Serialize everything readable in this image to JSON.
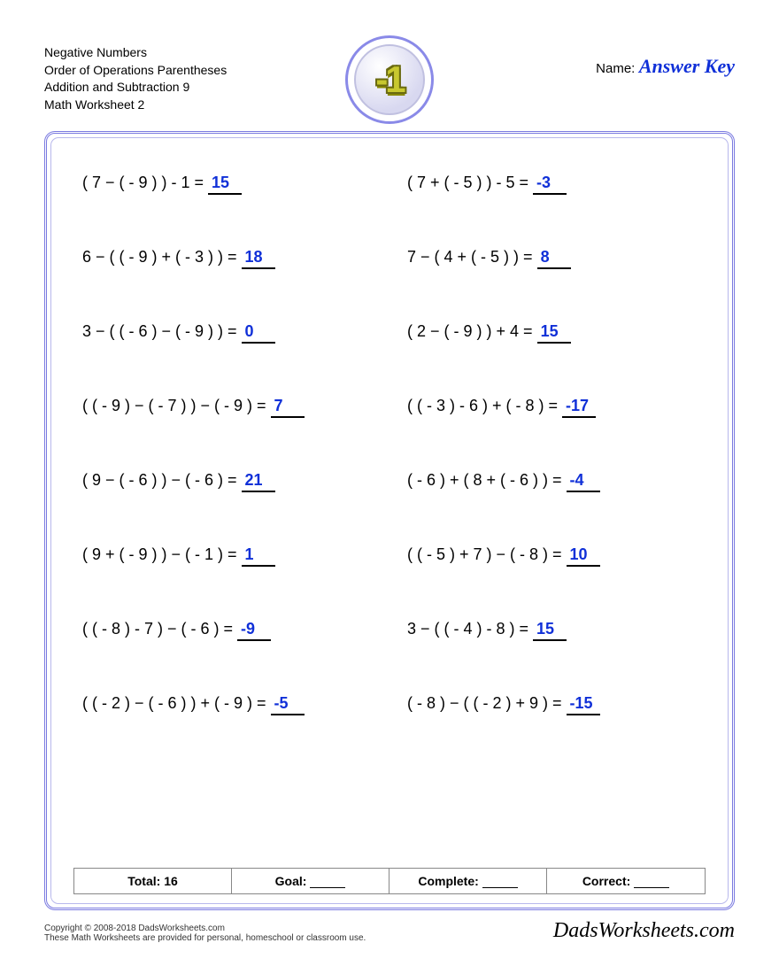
{
  "colors": {
    "answer_color": "#1030d8",
    "border_color": "#7a7ae0",
    "badge_num_fill": "#c8c830",
    "badge_num_stroke": "#6a6a10",
    "page_bg": "#ffffff"
  },
  "header": {
    "lines": [
      "Negative Numbers",
      "Order of Operations Parentheses",
      "Addition and Subtraction 9",
      "Math Worksheet 2"
    ],
    "badge_text": "-1",
    "name_label": "Name:",
    "answer_key": "Answer Key"
  },
  "problems": [
    {
      "expr": "( 7 − ( - 9 ) ) - 1 =",
      "ans": "15"
    },
    {
      "expr": "( 7 + ( - 5 ) ) - 5 =",
      "ans": "-3"
    },
    {
      "expr": "6 − ( ( - 9 ) + ( - 3 ) ) =",
      "ans": "18"
    },
    {
      "expr": "7 − ( 4 + ( - 5 ) ) =",
      "ans": "8"
    },
    {
      "expr": "3 − ( ( - 6 ) − ( - 9 ) ) =",
      "ans": "0"
    },
    {
      "expr": "( 2 − ( - 9 ) ) + 4 =",
      "ans": "15"
    },
    {
      "expr": "( ( - 9 ) − ( - 7 ) ) − ( - 9 ) =",
      "ans": "7"
    },
    {
      "expr": "( ( - 3 ) - 6 ) + ( - 8 ) =",
      "ans": "-17"
    },
    {
      "expr": "( 9 − ( - 6 ) ) − ( - 6 ) =",
      "ans": "21"
    },
    {
      "expr": "( - 6 ) + ( 8 + ( - 6 ) ) =",
      "ans": "-4"
    },
    {
      "expr": "( 9 + ( - 9 ) ) − ( - 1 ) =",
      "ans": "1"
    },
    {
      "expr": "( ( - 5 ) + 7 ) − ( - 8 ) =",
      "ans": "10"
    },
    {
      "expr": "( ( - 8 ) - 7 ) − ( - 6 ) =",
      "ans": "-9"
    },
    {
      "expr": "3 − ( ( - 4 ) - 8 ) =",
      "ans": "15"
    },
    {
      "expr": "( ( - 2 ) − ( - 6 ) ) + ( - 9 ) =",
      "ans": "-5"
    },
    {
      "expr": "( - 8 ) − ( ( - 2 ) + 9 ) =",
      "ans": "-15"
    }
  ],
  "summary": {
    "total_label": "Total: 16",
    "goal_label": "Goal:",
    "complete_label": "Complete:",
    "correct_label": "Correct:"
  },
  "footer": {
    "copyright": "Copyright © 2008-2018 DadsWorksheets.com",
    "note": "These Math Worksheets are provided for personal, homeschool or classroom use.",
    "site": "DadsWorksheets.com"
  }
}
